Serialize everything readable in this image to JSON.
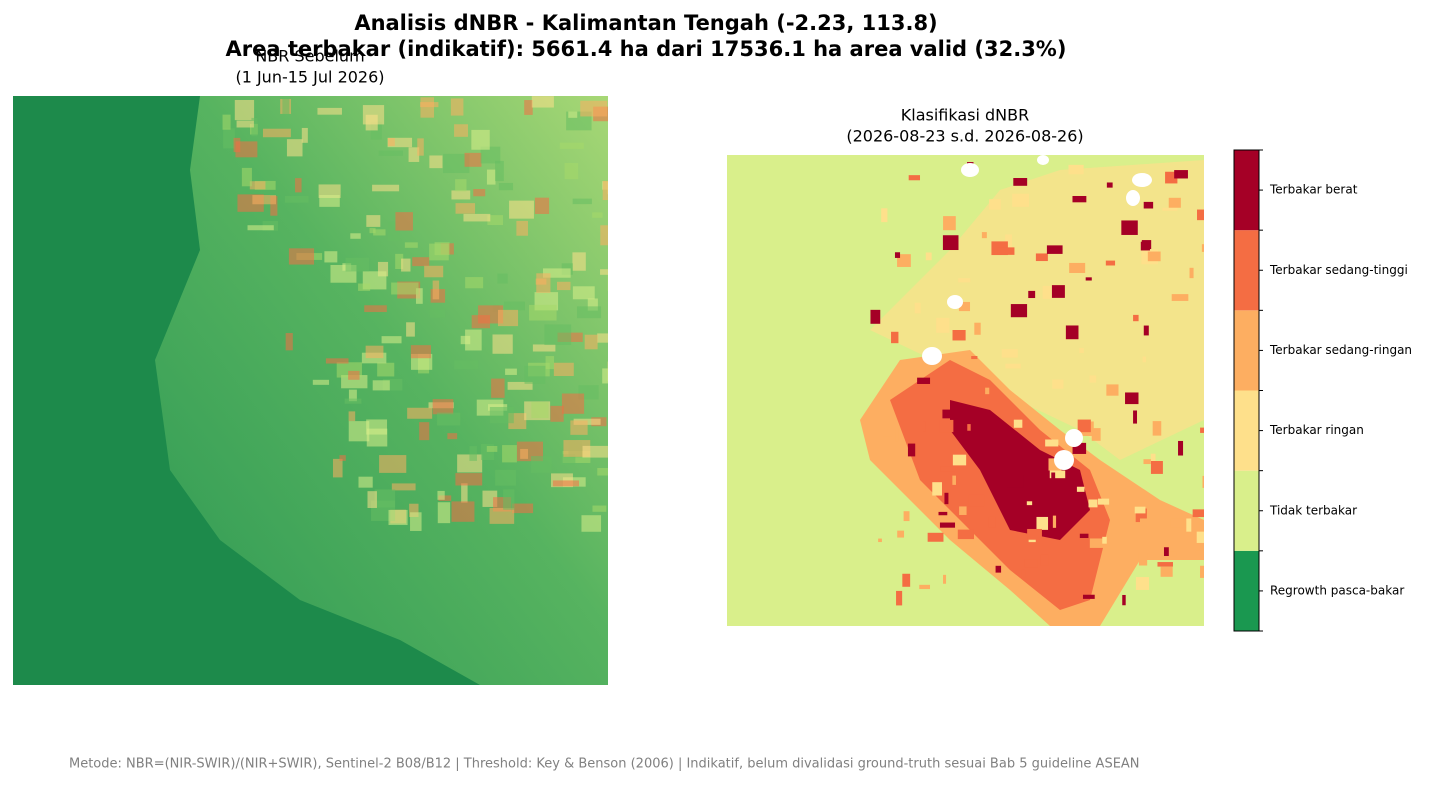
{
  "figure": {
    "title": "Analisis dNBR - Kalimantan Tengah (-2.23, 113.8)",
    "subtitle": "Area terbakar (indikatif): 5661.4 ha dari 17536.1 ha area valid (32.3%)",
    "left_panel": {
      "title": "NBR Sebelum",
      "subtitle": "(1 Jun-15 Jul 2026)"
    },
    "right_panel": {
      "title": "Klasifikasi dNBR",
      "subtitle": "(2026-08-23 s.d. 2026-08-26)"
    },
    "colorbar": {
      "classes": [
        {
          "label": "Regrowth pasca-bakar",
          "color": "#1a9850"
        },
        {
          "label": "Tidak terbakar",
          "color": "#d9ef8b"
        },
        {
          "label": "Terbakar ringan",
          "color": "#fee08b"
        },
        {
          "label": "Terbakar sedang-ringan",
          "color": "#fdae61"
        },
        {
          "label": "Terbakar sedang-tinggi",
          "color": "#f46d43"
        },
        {
          "label": "Terbakar berat",
          "color": "#a50026"
        }
      ]
    },
    "footer": "Metode: NBR=(NIR-SWIR)/(NIR+SWIR), Sentinel-2 B08/B12 | Threshold: Key & Benson (2006) | Indikatif, belum divalidasi ground-truth sesuai Bab 5 guideline ASEAN"
  }
}
